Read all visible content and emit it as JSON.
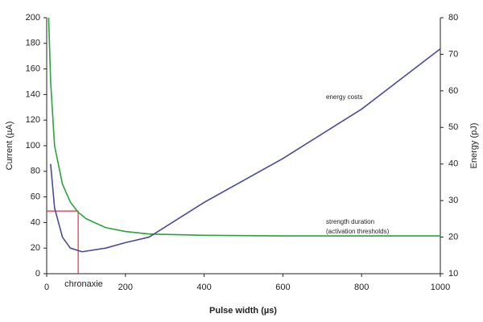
{
  "chart_data": {
    "type": "line",
    "xlabel": "Pulse width (µs)",
    "ylabel": "Current (µA)",
    "y2label": "Energy (pJ)",
    "xlim": [
      0,
      1000
    ],
    "xticks": [
      0,
      200,
      400,
      600,
      800,
      1000
    ],
    "ylim": [
      0,
      200
    ],
    "yticks": [
      0,
      20,
      40,
      60,
      80,
      100,
      120,
      140,
      160,
      180,
      200
    ],
    "y2lim": [
      10,
      80
    ],
    "y2ticks": [
      10,
      20,
      30,
      40,
      50,
      60,
      70,
      80
    ],
    "ylabel_color": "#2aa33a",
    "y2label_color": "#4a4a9a",
    "series": [
      {
        "name": "strength duration",
        "color": "#2aa33a",
        "axis": "y",
        "x": [
          5,
          10,
          20,
          40,
          60,
          80,
          100,
          150,
          200,
          260,
          400,
          600,
          800,
          1000
        ],
        "values": [
          200,
          150,
          100,
          70,
          56,
          48,
          43,
          36,
          33,
          31,
          30,
          29.5,
          29.5,
          29.5
        ]
      },
      {
        "name": "energy costs",
        "color": "#4a4a9a",
        "axis": "y2",
        "x": [
          10,
          20,
          40,
          60,
          90,
          150,
          200,
          260,
          400,
          600,
          800,
          1000
        ],
        "values": [
          40,
          28,
          20,
          17,
          16,
          17,
          18.5,
          20,
          29.5,
          41.5,
          55,
          71.5
        ]
      }
    ],
    "annotations": [
      "energy costs",
      "strength duration",
      "(activation thresholds)"
    ],
    "chronaxie": {
      "label": "chronaxie",
      "x": 80,
      "y": 49,
      "color": "#d9304a"
    }
  }
}
